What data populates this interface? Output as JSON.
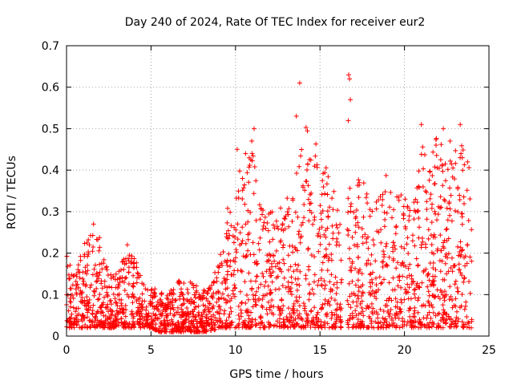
{
  "chart_data": {
    "type": "scatter",
    "title": "Day 240 of 2024, Rate Of TEC Index for receiver eur2",
    "xlabel": "GPS time / hours",
    "ylabel": "ROTI / TECUs",
    "xlim": [
      0,
      25
    ],
    "ylim": [
      0,
      0.7
    ],
    "xticks": [
      0,
      5,
      10,
      15,
      20,
      25
    ],
    "yticks": [
      0,
      0.1,
      0.2,
      0.3,
      0.4,
      0.5,
      0.6,
      0.7
    ],
    "xtick_labels": [
      "0",
      "5",
      "10",
      "15",
      "20",
      "25"
    ],
    "ytick_labels": [
      "0",
      "0.1",
      "0.2",
      "0.3",
      "0.4",
      "0.5",
      "0.6",
      "0.7"
    ],
    "grid": true,
    "marker": "+",
    "color": "#ff0000",
    "data_gap_hours": [
      16.3,
      16.6
    ],
    "envelope": {
      "x": [
        0,
        0.5,
        1,
        1.5,
        2,
        2.5,
        3,
        3.5,
        4,
        4.5,
        5,
        5.5,
        6,
        6.5,
        7,
        7.5,
        8,
        8.5,
        9,
        9.5,
        10,
        10.5,
        11,
        11.5,
        12,
        12.5,
        13,
        13.5,
        14,
        14.5,
        15,
        15.5,
        16,
        16.5,
        17,
        17.5,
        18,
        18.5,
        19,
        19.5,
        20,
        20.5,
        21,
        21.5,
        22,
        22.5,
        23,
        23.5,
        24
      ],
      "y_upper": [
        0.22,
        0.14,
        0.22,
        0.25,
        0.24,
        0.16,
        0.15,
        0.2,
        0.2,
        0.13,
        0.12,
        0.11,
        0.12,
        0.14,
        0.13,
        0.13,
        0.11,
        0.12,
        0.18,
        0.3,
        0.42,
        0.4,
        0.5,
        0.32,
        0.3,
        0.3,
        0.33,
        0.36,
        0.52,
        0.6,
        0.38,
        0.42,
        0.34,
        0.62,
        0.36,
        0.4,
        0.3,
        0.36,
        0.4,
        0.36,
        0.34,
        0.3,
        0.5,
        0.42,
        0.5,
        0.42,
        0.51,
        0.46,
        0.4
      ],
      "y_lower": [
        0.02,
        0.02,
        0.02,
        0.02,
        0.02,
        0.02,
        0.02,
        0.02,
        0.02,
        0.02,
        0.02,
        0.01,
        0.01,
        0.01,
        0.01,
        0.01,
        0.01,
        0.01,
        0.02,
        0.02,
        0.02,
        0.02,
        0.02,
        0.02,
        0.02,
        0.02,
        0.02,
        0.02,
        0.02,
        0.02,
        0.02,
        0.02,
        0.02,
        0.02,
        0.02,
        0.02,
        0.02,
        0.02,
        0.02,
        0.02,
        0.02,
        0.02,
        0.02,
        0.02,
        0.02,
        0.02,
        0.02,
        0.02,
        0.02
      ]
    },
    "notable_points": [
      {
        "x": 13.8,
        "y": 0.61
      },
      {
        "x": 16.7,
        "y": 0.63
      },
      {
        "x": 16.75,
        "y": 0.62
      },
      {
        "x": 16.8,
        "y": 0.57
      },
      {
        "x": 11.1,
        "y": 0.5
      },
      {
        "x": 21.0,
        "y": 0.51
      },
      {
        "x": 22.3,
        "y": 0.5
      },
      {
        "x": 23.3,
        "y": 0.51
      },
      {
        "x": 10.1,
        "y": 0.45
      },
      {
        "x": 10.6,
        "y": 0.44
      },
      {
        "x": 13.6,
        "y": 0.53
      },
      {
        "x": 22.7,
        "y": 0.47
      },
      {
        "x": 1.6,
        "y": 0.27
      },
      {
        "x": 3.6,
        "y": 0.22
      }
    ]
  }
}
